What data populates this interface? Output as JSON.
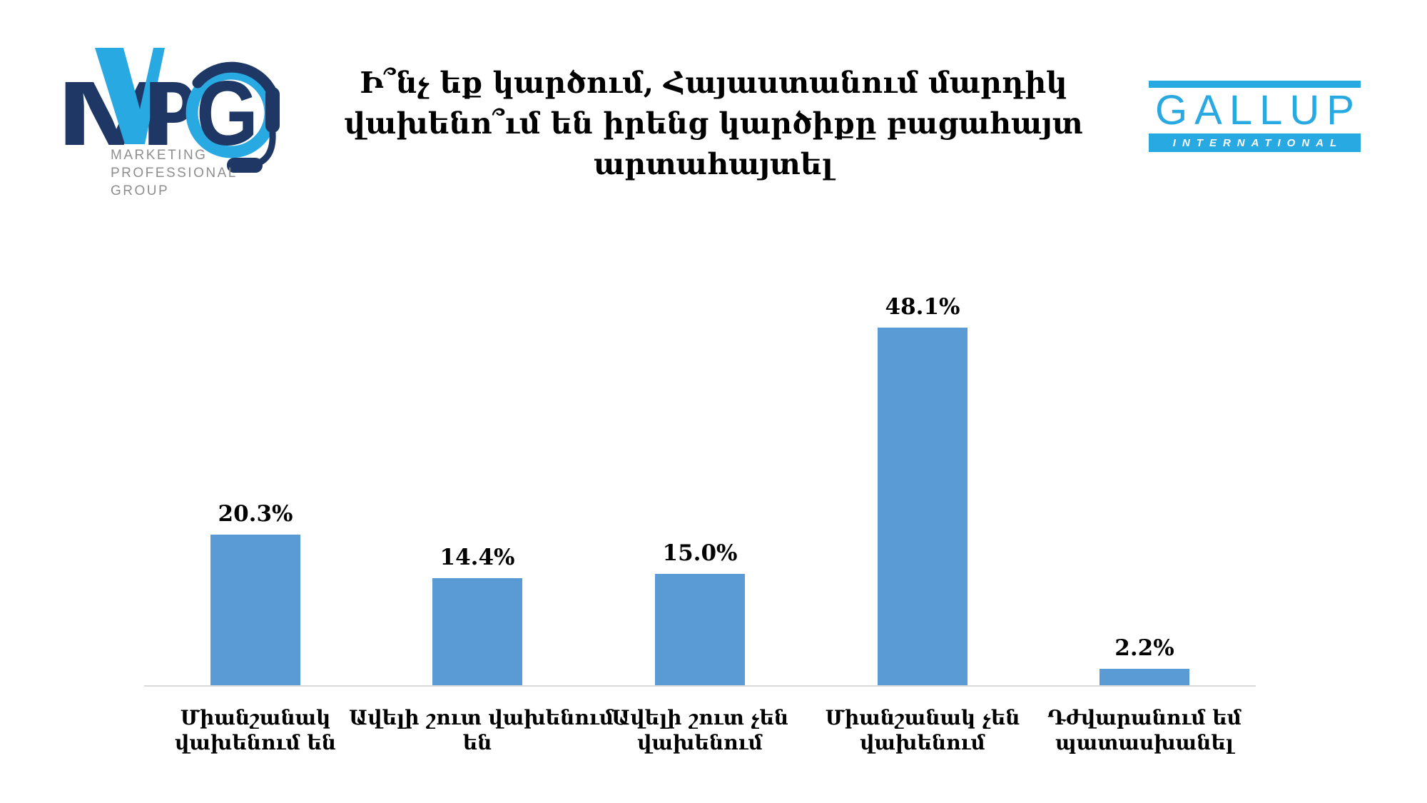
{
  "header": {
    "title_lines": [
      "Ի՞նչ եք կարծում, Հայաստանում մարդիկ",
      "վախենո՞ւմ են իրենց կարծիքը բացահայտ",
      "արտահայտել"
    ],
    "mpg_logo": {
      "letters": [
        "M",
        "P",
        "G"
      ],
      "sub_lines": [
        "MARKETING",
        "PROFESSIONAL",
        "GROUP"
      ]
    },
    "gallup_logo": {
      "name": "GALLUP",
      "subtitle": "INTERNATIONAL"
    }
  },
  "colors": {
    "bar": "#5b9bd5",
    "axis": "#d9d9d9",
    "mpg_navy": "#1e3765",
    "brand_light_blue": "#29a9e1",
    "mpg_gray": "#8e8e8e",
    "text": "#000000",
    "background": "#ffffff"
  },
  "chart_data": {
    "type": "bar",
    "title": "Ի՞նչ եք կարծում, Հայաստանում մարդիկ վախենո՞ւմ են իրենց կարծիքը բացահայտ արտահայտել",
    "categories": [
      "Միանշանակ վախենում են",
      "Ավելի շուտ վախենում են",
      "Ավելի շուտ չեն վախենում",
      "Միանշանակ չեն վախենում",
      "Դժվարանում եմ պատասխանել"
    ],
    "categories_lines": [
      [
        "Միանշանակ",
        "վախենում են"
      ],
      [
        "Ավելի շուտ վախենում",
        "են"
      ],
      [
        "Ավելի շուտ չեն",
        "վախենում"
      ],
      [
        "Միանշանակ չեն",
        "վախենում"
      ],
      [
        "Դժվարանում եմ",
        "պատասխանել"
      ]
    ],
    "values": [
      20.3,
      14.4,
      15.0,
      48.1,
      2.2
    ],
    "labels": [
      "20.3%",
      "14.4%",
      "15.0%",
      "48.1%",
      "2.2%"
    ],
    "xlabel": "",
    "ylabel": "",
    "ylim": [
      0,
      50
    ],
    "grid": false,
    "legend": false,
    "bar_color": "#5b9bd5",
    "axis_color": "#d9d9d9"
  }
}
